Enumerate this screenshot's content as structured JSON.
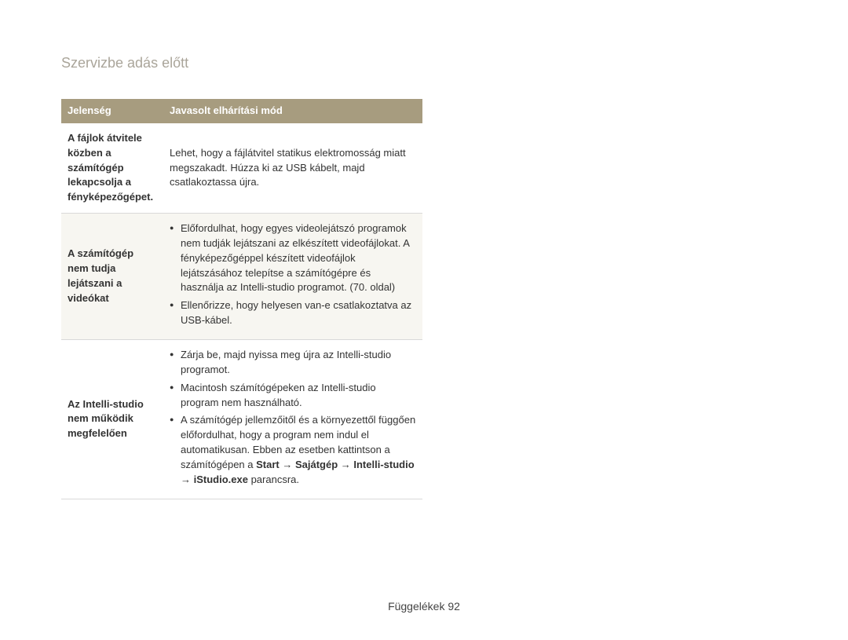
{
  "page": {
    "title": "Szervizbe adás előtt"
  },
  "table": {
    "headers": {
      "symptom": "Jelenség",
      "fix": "Javasolt elhárítási mód"
    },
    "rows": [
      {
        "symptom": "A fájlok átvitele közben a számítógép lekapcsolja a fényképezőgépet.",
        "fix_plain": "Lehet, hogy a fájlátvitel statikus elektromosság miatt megszakadt. Húzza ki az USB kábelt, majd csatlakoztassa újra."
      },
      {
        "symptom": "A számítógép nem tudja lejátszani a videókat",
        "fix_bullets": [
          "Előfordulhat, hogy egyes videolejátszó programok nem tudják lejátszani az elkészített videofájlokat. A fényképezőgéppel készített videofájlok lejátszásához telepítse a számítógépre és használja az Intelli-studio programot. (70. oldal)",
          "Ellenőrizze, hogy helyesen van-e csatlakoztatva az USB-kábel."
        ]
      },
      {
        "symptom": "Az Intelli-studio nem működik megfelelően",
        "fix_bullets": [
          "Zárja be, majd nyissa meg újra az Intelli-studio programot.",
          "Macintosh számítógépeken az Intelli-studio program nem használható."
        ],
        "fix_bullet3_pre": "A számítógép jellemzőitől és a környezettől függően előfordulhat, hogy a program nem indul el automatikusan. Ebben az esetben kattintson a számítógépen a ",
        "fix_bullet3_path": "Start → Sajátgép → Intelli-studio → iStudio.exe",
        "fix_bullet3_post": " parancsra."
      }
    ]
  },
  "footer": {
    "label": "Függelékek",
    "page": "92"
  }
}
